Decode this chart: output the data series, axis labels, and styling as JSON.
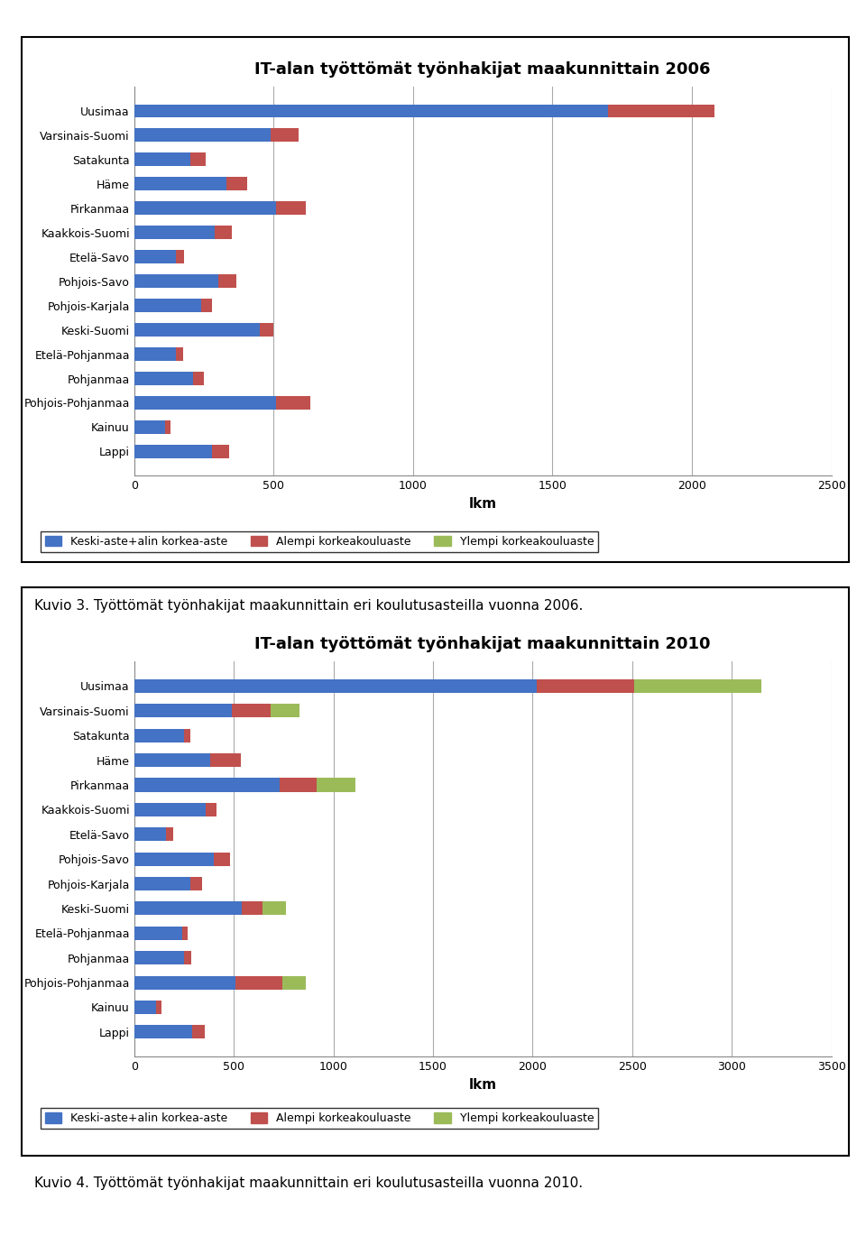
{
  "chart1": {
    "title": "IT-alan työttömät työnhakijat maakunnittain 2006",
    "categories": [
      "Lappi",
      "Kainuu",
      "Pohjois-Pohjanmaa",
      "Pohjanmaa",
      "Etelä-Pohjanmaa",
      "Keski-Suomi",
      "Pohjois-Karjala",
      "Pohjois-Savo",
      "Etelä-Savo",
      "Kaakkois-Suomi",
      "Pirkanmaa",
      "Häme",
      "Satakunta",
      "Varsinais-Suomi",
      "Uusimaa"
    ],
    "keski": [
      280,
      110,
      510,
      210,
      150,
      450,
      240,
      300,
      150,
      290,
      510,
      330,
      200,
      490,
      1700
    ],
    "alempi": [
      60,
      20,
      120,
      40,
      25,
      50,
      40,
      65,
      30,
      60,
      105,
      75,
      55,
      100,
      380
    ],
    "ylempi": [
      0,
      0,
      0,
      0,
      0,
      0,
      0,
      0,
      0,
      0,
      0,
      0,
      0,
      0,
      0
    ],
    "xlim": [
      0,
      2500
    ],
    "xticks": [
      0,
      500,
      1000,
      1500,
      2000,
      2500
    ],
    "xlabel": "lkm"
  },
  "chart2": {
    "title": "IT-alan työttömät työnhakijat maakunnittain 2010",
    "categories": [
      "Lappi",
      "Kainuu",
      "Pohjois-Pohjanmaa",
      "Pohjanmaa",
      "Etelä-Pohjanmaa",
      "Keski-Suomi",
      "Pohjois-Karjala",
      "Pohjois-Savo",
      "Etelä-Savo",
      "Kaakkois-Suomi",
      "Pirkanmaa",
      "Häme",
      "Satakunta",
      "Varsinais-Suomi",
      "Uusimaa"
    ],
    "keski": [
      290,
      110,
      510,
      250,
      240,
      540,
      280,
      400,
      160,
      360,
      730,
      380,
      250,
      490,
      2020
    ],
    "alempi": [
      65,
      25,
      235,
      35,
      30,
      105,
      60,
      80,
      35,
      55,
      185,
      155,
      30,
      195,
      490
    ],
    "ylempi": [
      0,
      0,
      115,
      0,
      0,
      115,
      0,
      0,
      0,
      0,
      195,
      0,
      0,
      145,
      640
    ],
    "xlim": [
      0,
      3500
    ],
    "xticks": [
      0,
      500,
      1000,
      1500,
      2000,
      2500,
      3000,
      3500
    ],
    "xlabel": "lkm"
  },
  "legend_labels": [
    "Keski-aste+alin korkea-aste",
    "Alempi korkeakouluaste",
    "Ylempi korkeakouluaste"
  ],
  "colors": [
    "#4472C4",
    "#C0504D",
    "#9BBB59"
  ],
  "caption1": "Kuvio 3. Työttömät työnhakijat maakunnittain eri koulutusasteilla vuonna 2006.",
  "caption2": "Kuvio 4. Työttömät työnhakijat maakunnittain eri koulutusasteilla vuonna 2010.",
  "bar_height": 0.55,
  "figsize": [
    9.6,
    13.7
  ],
  "dpi": 100
}
